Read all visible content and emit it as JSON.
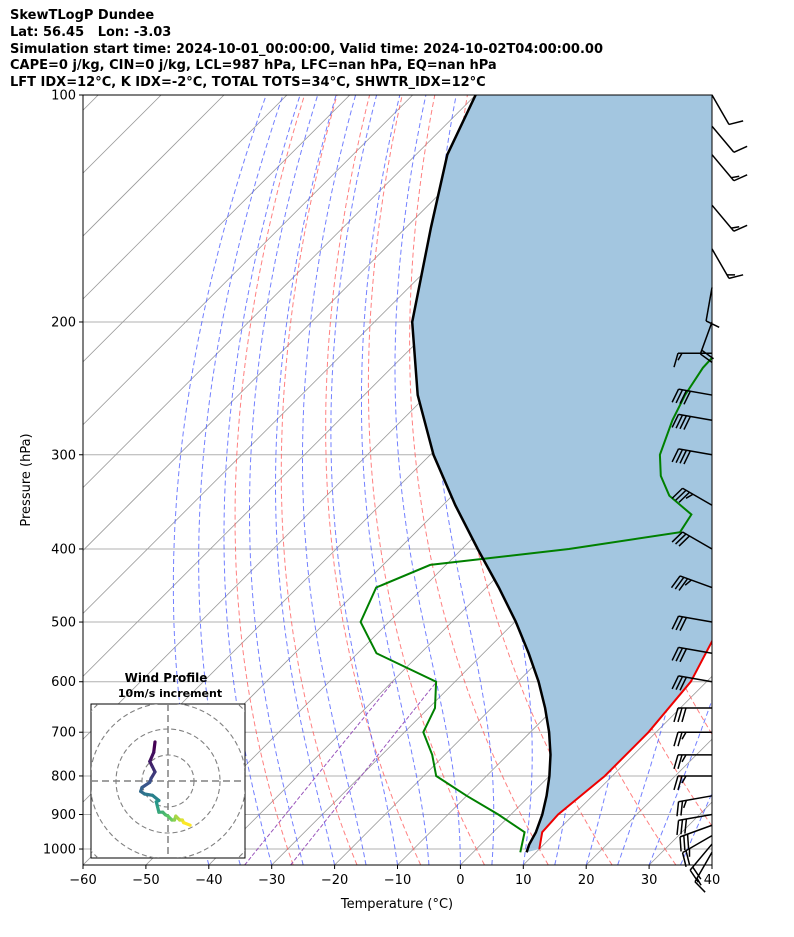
{
  "header": {
    "line1": "SkewTLogP Dundee",
    "line2": "Lat: 56.45   Lon: -3.03",
    "line3": "Simulation start time: 2024-10-01_00:00:00, Valid time: 2024-10-02T04:00:00.00",
    "line4": "CAPE=0 j/kg, CIN=0 j/kg, LCL=987 hPa, LFC=nan hPa, EQ=nan hPa",
    "line5": "LFT IDX=12°C, K IDX=-2°C, TOTAL TOTS=34°C, SHWTR_IDX=12°C"
  },
  "chart_data": {
    "type": "line",
    "subtype": "skew-t log-p",
    "xlabel": "Temperature (°C)",
    "ylabel": "Pressure (hPa)",
    "xlim": [
      -60,
      40
    ],
    "ylim": [
      1050,
      100
    ],
    "y_scale": "log",
    "x_ticks": [
      "−60",
      "−50",
      "−40",
      "−30",
      "−20",
      "−10",
      "0",
      "10",
      "20",
      "30",
      "40"
    ],
    "y_ticks": [
      "100",
      "200",
      "300",
      "400",
      "500",
      "600",
      "700",
      "800",
      "900",
      "1000"
    ],
    "grid": true,
    "colors": {
      "temperature": "#ee0000",
      "dewpoint": "#008000",
      "parcel": "#000000",
      "shade": "#a3c6e0",
      "dry_adiabat": "#ff5555",
      "moist_adiabat": "#4455ff",
      "mixing_ratio": "#9955bb",
      "isotherm": "#999999"
    },
    "series": [
      {
        "role": "temperature",
        "points": [
          [
            10.0,
            1000
          ],
          [
            7.8,
            950
          ],
          [
            7.5,
            900
          ],
          [
            8.8,
            800
          ],
          [
            8.8,
            700
          ],
          [
            7.5,
            600
          ],
          [
            3.0,
            500
          ],
          [
            -1.0,
            440
          ],
          [
            -5.0,
            400
          ],
          [
            -12.5,
            300
          ],
          [
            -14.0,
            250
          ],
          [
            -16.0,
            200
          ],
          [
            -16.0,
            190
          ],
          [
            -18.5,
            180
          ],
          [
            -25.0,
            170
          ],
          [
            -33.0,
            150
          ],
          [
            -38.0,
            130
          ],
          [
            -44.0,
            110
          ],
          [
            -48.0,
            100
          ]
        ]
      },
      {
        "role": "dewpoint",
        "points": [
          [
            7.5,
            1010
          ],
          [
            5.0,
            950
          ],
          [
            -2.0,
            900
          ],
          [
            -10.0,
            850
          ],
          [
            -18.0,
            800
          ],
          [
            -22.0,
            750
          ],
          [
            -27.0,
            700
          ],
          [
            -29.0,
            650
          ],
          [
            -33.0,
            600
          ],
          [
            -47.0,
            550
          ],
          [
            -54.5,
            500
          ],
          [
            -57.5,
            450
          ],
          [
            -52.5,
            420
          ],
          [
            -33.0,
            400
          ],
          [
            -18.0,
            380
          ],
          [
            -19.0,
            360
          ],
          [
            -25.5,
            340
          ],
          [
            -30.0,
            320
          ],
          [
            -33.5,
            300
          ],
          [
            -37.0,
            270
          ],
          [
            -39.0,
            250
          ],
          [
            -40.5,
            230
          ],
          [
            -41.0,
            205
          ],
          [
            -43.5,
            200
          ],
          [
            -50.5,
            180
          ],
          [
            -52.5,
            170
          ],
          [
            -55.0,
            160
          ],
          [
            -58.0,
            150
          ],
          [
            -63.0,
            130
          ],
          [
            -66.0,
            110
          ],
          [
            -70.0,
            100
          ]
        ]
      },
      {
        "role": "parcel",
        "points": [
          [
            8.5,
            1010
          ],
          [
            7.7,
            987
          ],
          [
            6.8,
            950
          ],
          [
            5.0,
            900
          ],
          [
            2.7,
            850
          ],
          [
            0.0,
            800
          ],
          [
            -3.2,
            750
          ],
          [
            -7.0,
            700
          ],
          [
            -11.5,
            650
          ],
          [
            -16.7,
            600
          ],
          [
            -22.8,
            550
          ],
          [
            -29.8,
            500
          ],
          [
            -38.0,
            450
          ],
          [
            -47.5,
            400
          ],
          [
            -58.0,
            350
          ],
          [
            -69.5,
            300
          ],
          [
            -81.5,
            250
          ],
          [
            -94.0,
            200
          ],
          [
            -106.0,
            150
          ],
          [
            -115.0,
            120
          ],
          [
            -120.0,
            100
          ]
        ]
      }
    ],
    "wind_barbs": {
      "units": "knots",
      "barbs": [
        [
          1010,
          15,
          210
        ],
        [
          985,
          20,
          220
        ],
        [
          960,
          25,
          240
        ],
        [
          930,
          30,
          250
        ],
        [
          900,
          30,
          260
        ],
        [
          850,
          25,
          260
        ],
        [
          800,
          25,
          270
        ],
        [
          750,
          25,
          270
        ],
        [
          700,
          25,
          270
        ],
        [
          650,
          30,
          270
        ],
        [
          600,
          30,
          280
        ],
        [
          550,
          30,
          280
        ],
        [
          500,
          30,
          280
        ],
        [
          450,
          35,
          290
        ],
        [
          400,
          30,
          300
        ],
        [
          350,
          35,
          300
        ],
        [
          300,
          40,
          280
        ],
        [
          270,
          40,
          280
        ],
        [
          250,
          40,
          280
        ],
        [
          220,
          15,
          270
        ],
        [
          200,
          20,
          200
        ],
        [
          180,
          10,
          190
        ],
        [
          160,
          15,
          150
        ],
        [
          140,
          15,
          140
        ],
        [
          120,
          15,
          140
        ],
        [
          110,
          10,
          140
        ],
        [
          100,
          10,
          150
        ]
      ]
    },
    "hodograph": {
      "title": "Wind Profile",
      "subtitle": "10m/s increment",
      "ring_spacing_ms": 10,
      "points": [
        [
          -5.0,
          -15.0
        ],
        [
          -5.5,
          -11.0
        ],
        [
          -7.0,
          -7.5
        ],
        [
          -6.0,
          -5.5
        ],
        [
          -5.0,
          -3.5
        ],
        [
          -6.5,
          -1.0
        ],
        [
          -7.0,
          0.5
        ],
        [
          -10.0,
          2.5
        ],
        [
          -10.5,
          4.0
        ],
        [
          -9.0,
          5.0
        ],
        [
          -6.0,
          5.5
        ],
        [
          -3.5,
          7.5
        ],
        [
          -4.5,
          8.0
        ],
        [
          -4.0,
          10.0
        ],
        [
          -3.5,
          12.0
        ],
        [
          -2.0,
          12.0
        ],
        [
          -1.0,
          13.0
        ],
        [
          0.0,
          13.5
        ],
        [
          1.5,
          15.0
        ],
        [
          2.5,
          15.0
        ],
        [
          3.0,
          13.5
        ],
        [
          4.5,
          15.0
        ],
        [
          5.5,
          15.0
        ],
        [
          6.0,
          16.0
        ],
        [
          8.5,
          17.0
        ]
      ]
    }
  }
}
